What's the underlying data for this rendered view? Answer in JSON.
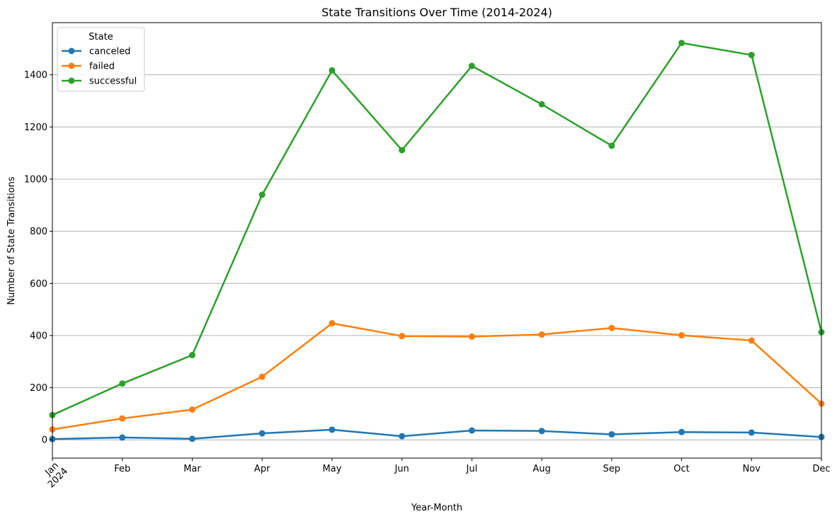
{
  "chart_data": {
    "type": "line",
    "title": "State Transitions Over Time (2014-2024)",
    "xlabel": "Year-Month",
    "ylabel": "Number of State Transitions",
    "categories": [
      "Jan",
      "Feb",
      "Mar",
      "Apr",
      "May",
      "Jun",
      "Jul",
      "Aug",
      "Sep",
      "Oct",
      "Nov",
      "Dec"
    ],
    "year_label": "2024",
    "ylim": [
      -70,
      1600
    ],
    "yticks": [
      0,
      200,
      400,
      600,
      800,
      1000,
      1200,
      1400
    ],
    "grid": "y",
    "legend": {
      "title": "State",
      "placement": "upper-left"
    },
    "series": [
      {
        "name": "canceled",
        "color": "#1f77b4",
        "values": [
          3,
          9,
          4,
          25,
          39,
          14,
          36,
          34,
          21,
          30,
          28,
          11
        ]
      },
      {
        "name": "failed",
        "color": "#ff7f0e",
        "values": [
          40,
          82,
          116,
          242,
          447,
          398,
          396,
          404,
          429,
          401,
          381,
          139
        ]
      },
      {
        "name": "successful",
        "color": "#2ca02c",
        "values": [
          95,
          216,
          325,
          940,
          1417,
          1111,
          1434,
          1287,
          1128,
          1522,
          1476,
          413
        ]
      }
    ]
  }
}
